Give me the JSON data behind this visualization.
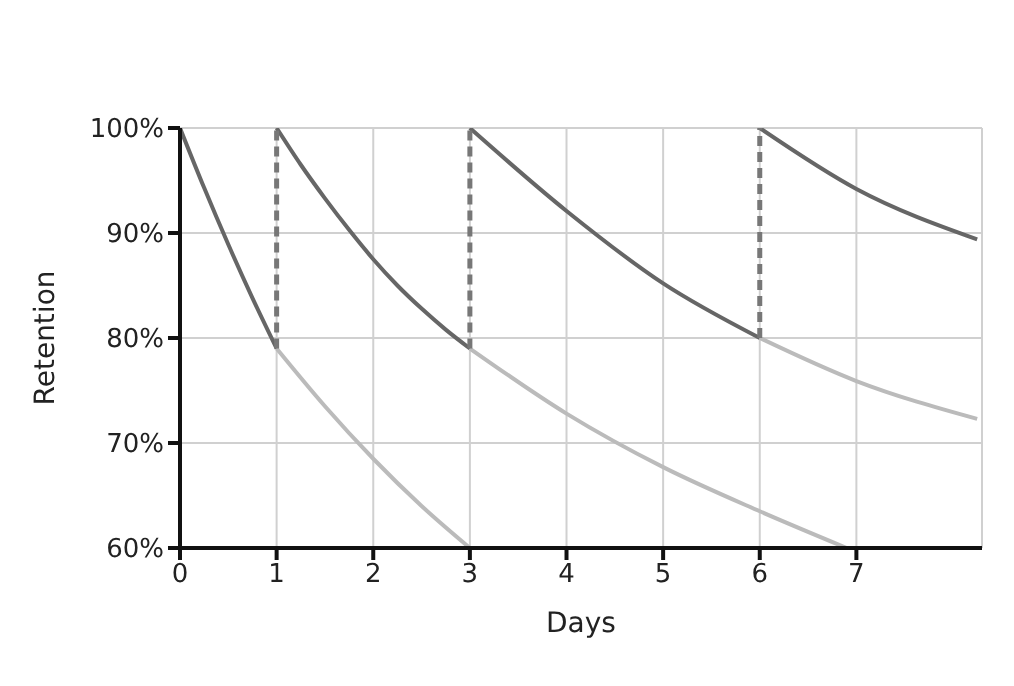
{
  "chart_data": {
    "type": "line",
    "xlabel": "Days",
    "ylabel": "Retention",
    "xlim": [
      0,
      8.3
    ],
    "ylim": [
      60,
      100
    ],
    "xticks": [
      0,
      1,
      2,
      3,
      4,
      5,
      6,
      7
    ],
    "yticks": [
      {
        "value": 60,
        "label": "60%"
      },
      {
        "value": 70,
        "label": "70%"
      },
      {
        "value": 80,
        "label": "80%"
      },
      {
        "value": 90,
        "label": "90%"
      },
      {
        "value": 100,
        "label": "100%"
      }
    ],
    "grid": true,
    "marker": "none",
    "line_style": "solid",
    "series": [
      {
        "color": "#666666",
        "x": [
          0,
          0.25,
          0.5,
          0.75,
          1
        ],
        "values": [
          100,
          94.3,
          88.9,
          83.8,
          79
        ]
      },
      {
        "color": "#bbbbbb",
        "x": [
          1,
          1.5,
          2,
          2.5,
          3
        ],
        "values": [
          79,
          73.5,
          68.5,
          64,
          60
        ]
      },
      {
        "color": "#666666",
        "x": [
          1,
          1.25,
          1.5,
          1.75,
          2,
          2.25,
          2.5,
          2.75,
          3
        ],
        "values": [
          100,
          96.5,
          93.3,
          90.3,
          87.5,
          85,
          82.8,
          80.8,
          79
        ]
      },
      {
        "color": "#bbbbbb",
        "x": [
          3,
          4,
          5,
          6,
          6.9
        ],
        "values": [
          79,
          72.8,
          67.7,
          63.5,
          60
        ]
      },
      {
        "color": "#666666",
        "x": [
          3,
          4,
          5,
          6
        ],
        "values": [
          100,
          92.1,
          85.2,
          80
        ]
      },
      {
        "color": "#bbbbbb",
        "x": [
          6,
          7,
          8.25
        ],
        "values": [
          80,
          75.9,
          72.3
        ]
      },
      {
        "color": "#666666",
        "x": [
          6,
          7,
          8.25
        ],
        "values": [
          100,
          94.2,
          89.4
        ]
      },
      {
        "color": "#777777",
        "line_style": "dashed",
        "x": [
          1,
          1
        ],
        "values": [
          79,
          100
        ]
      },
      {
        "color": "#777777",
        "line_style": "dashed",
        "x": [
          3,
          3
        ],
        "values": [
          79,
          100
        ]
      },
      {
        "color": "#777777",
        "line_style": "dashed",
        "x": [
          6,
          6
        ],
        "values": [
          80,
          100
        ]
      }
    ]
  }
}
